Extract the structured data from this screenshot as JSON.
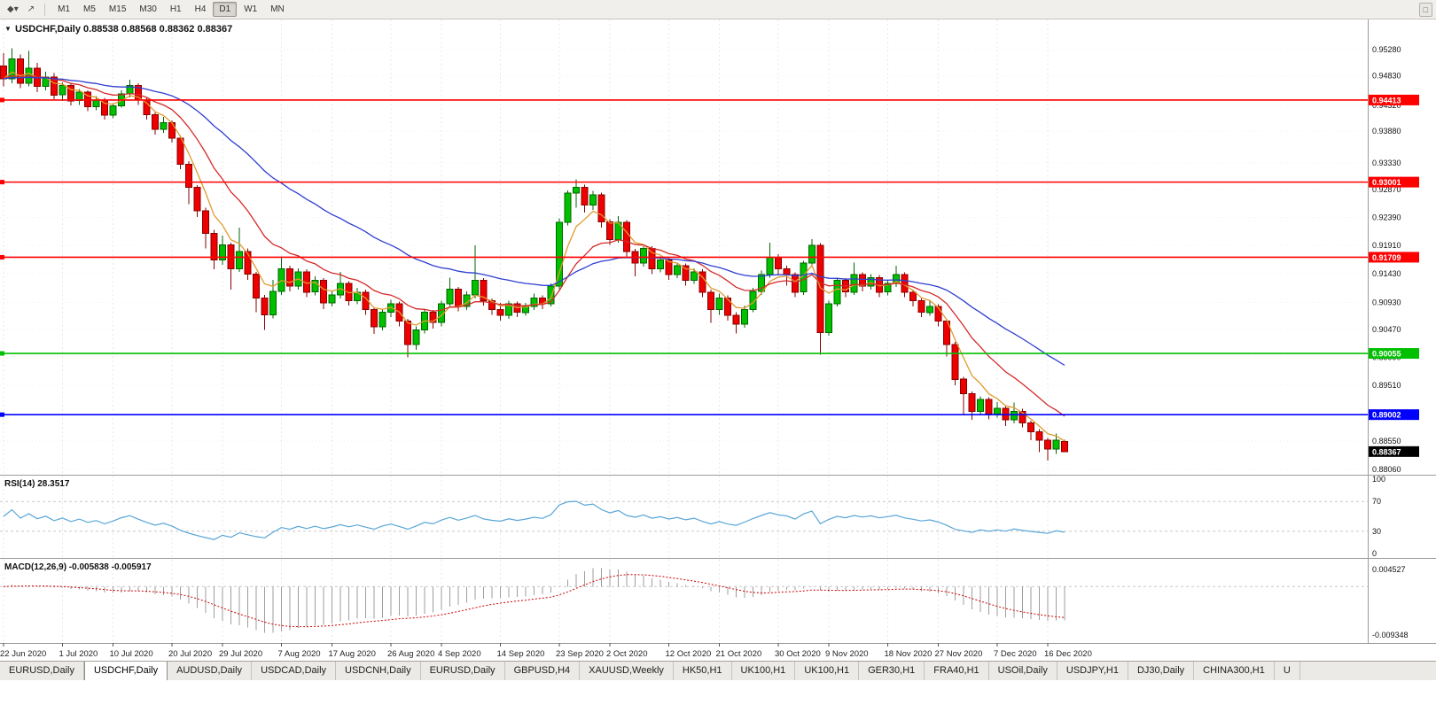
{
  "toolbar": {
    "icons": [
      {
        "name": "symbols-dropdown-icon",
        "glyph": "◆▾"
      },
      {
        "name": "cursor-arrow-icon",
        "glyph": "↗"
      },
      {
        "name": "window-restore-icon",
        "glyph": "□"
      }
    ],
    "timeframes": [
      "M1",
      "M5",
      "M15",
      "M30",
      "H1",
      "H4",
      "D1",
      "W1",
      "MN"
    ],
    "active_timeframe": "D1"
  },
  "chart": {
    "collapse_icon": "▼",
    "symbol_period": "USDCHF,Daily",
    "ohlc": "0.88538 0.88568 0.88362 0.88367"
  },
  "chart_data": {
    "type": "candlestick",
    "symbol": "USDCHF",
    "period": "Daily",
    "style": {
      "up_fill": "#00c000",
      "up_stroke": "#006600",
      "down_fill": "#ee0000",
      "down_stroke": "#880000",
      "hist": "#9e9e9e"
    },
    "price_axis_ticks": [
      "0.95280",
      "0.94830",
      "0.94320",
      "0.93880",
      "0.93330",
      "0.92870",
      "0.92390",
      "0.91910",
      "0.91430",
      "0.90930",
      "0.90470",
      "0.89990",
      "0.89510",
      "0.88550",
      "0.88060"
    ],
    "hlines": [
      {
        "value": 0.94413,
        "label": "0.94413",
        "color": "#ff0000"
      },
      {
        "value": 0.93001,
        "label": "0.93001",
        "color": "#ff0000"
      },
      {
        "value": 0.91709,
        "label": "0.91709",
        "color": "#ff0000"
      },
      {
        "value": 0.90055,
        "label": "0.90055",
        "color": "#00c000"
      },
      {
        "value": 0.89002,
        "label": "0.89002",
        "color": "#0000ff"
      }
    ],
    "current_price": {
      "value": 0.88367,
      "label": "0.88367",
      "color": "#000000"
    },
    "moving_averages": [
      {
        "period": 5,
        "method": "ema",
        "color": "#e09a2e"
      },
      {
        "period": 13,
        "method": "ema",
        "color": "#d42a2a"
      },
      {
        "period": 34,
        "method": "ema",
        "color": "#2e3fd0"
      }
    ],
    "x_labels": [
      "22 Jun 2020",
      "1 Jul 2020",
      "10 Jul 2020",
      "20 Jul 2020",
      "29 Jul 2020",
      "7 Aug 2020",
      "17 Aug 2020",
      "26 Aug 2020",
      "4 Sep 2020",
      "14 Sep 2020",
      "23 Sep 2020",
      "2 Oct 2020",
      "12 Oct 2020",
      "21 Oct 2020",
      "30 Oct 2020",
      "9 Nov 2020",
      "18 Nov 2020",
      "27 Nov 2020",
      "7 Dec 2020",
      "16 Dec 2020"
    ],
    "x_label_indices": [
      0,
      7,
      13,
      20,
      26,
      33,
      39,
      46,
      52,
      59,
      66,
      72,
      79,
      85,
      92,
      98,
      105,
      111,
      118,
      124
    ],
    "candles": [
      [
        0.95,
        0.9522,
        0.9465,
        0.9478
      ],
      [
        0.9478,
        0.953,
        0.947,
        0.9512
      ],
      [
        0.9512,
        0.952,
        0.9462,
        0.947
      ],
      [
        0.947,
        0.9526,
        0.9465,
        0.9496
      ],
      [
        0.9496,
        0.9505,
        0.9455,
        0.9465
      ],
      [
        0.9465,
        0.949,
        0.9458,
        0.9481
      ],
      [
        0.9481,
        0.9488,
        0.9443,
        0.945
      ],
      [
        0.945,
        0.9472,
        0.944,
        0.9466
      ],
      [
        0.9466,
        0.947,
        0.9432,
        0.944
      ],
      [
        0.944,
        0.946,
        0.9433,
        0.9455
      ],
      [
        0.9455,
        0.9458,
        0.9422,
        0.943
      ],
      [
        0.943,
        0.9448,
        0.9424,
        0.9441
      ],
      [
        0.9441,
        0.9445,
        0.9408,
        0.9415
      ],
      [
        0.9415,
        0.9436,
        0.941,
        0.9431
      ],
      [
        0.9431,
        0.9458,
        0.9428,
        0.9452
      ],
      [
        0.9452,
        0.9476,
        0.9446,
        0.9466
      ],
      [
        0.9466,
        0.947,
        0.9433,
        0.9441
      ],
      [
        0.9441,
        0.9445,
        0.9408,
        0.9416
      ],
      [
        0.9416,
        0.942,
        0.9382,
        0.9391
      ],
      [
        0.9391,
        0.9412,
        0.9385,
        0.9402
      ],
      [
        0.9402,
        0.9406,
        0.9368,
        0.9376
      ],
      [
        0.9376,
        0.938,
        0.9322,
        0.9331
      ],
      [
        0.9331,
        0.9336,
        0.9262,
        0.9291
      ],
      [
        0.9291,
        0.9295,
        0.924,
        0.9251
      ],
      [
        0.9251,
        0.9256,
        0.9186,
        0.9212
      ],
      [
        0.9212,
        0.9218,
        0.915,
        0.9166
      ],
      [
        0.9166,
        0.9208,
        0.9158,
        0.9192
      ],
      [
        0.9192,
        0.9196,
        0.9115,
        0.9151
      ],
      [
        0.9151,
        0.9222,
        0.9146,
        0.9181
      ],
      [
        0.9181,
        0.9186,
        0.9132,
        0.9142
      ],
      [
        0.9142,
        0.9146,
        0.9076,
        0.9101
      ],
      [
        0.9101,
        0.9106,
        0.9046,
        0.9072
      ],
      [
        0.9072,
        0.9132,
        0.9066,
        0.9112
      ],
      [
        0.9112,
        0.9172,
        0.9106,
        0.9151
      ],
      [
        0.9151,
        0.9156,
        0.9112,
        0.9121
      ],
      [
        0.9121,
        0.9152,
        0.9115,
        0.9146
      ],
      [
        0.9146,
        0.915,
        0.9102,
        0.9111
      ],
      [
        0.9111,
        0.9138,
        0.9105,
        0.9131
      ],
      [
        0.9131,
        0.9135,
        0.9082,
        0.9092
      ],
      [
        0.9092,
        0.9112,
        0.9086,
        0.9106
      ],
      [
        0.9106,
        0.9146,
        0.91,
        0.9126
      ],
      [
        0.9126,
        0.913,
        0.9088,
        0.9096
      ],
      [
        0.9096,
        0.9118,
        0.909,
        0.9111
      ],
      [
        0.9111,
        0.9115,
        0.9072,
        0.9081
      ],
      [
        0.9081,
        0.9085,
        0.9039,
        0.9051
      ],
      [
        0.9051,
        0.9082,
        0.9045,
        0.9076
      ],
      [
        0.9076,
        0.9098,
        0.9068,
        0.9091
      ],
      [
        0.9091,
        0.9095,
        0.9052,
        0.9061
      ],
      [
        0.9061,
        0.9065,
        0.8999,
        0.9021
      ],
      [
        0.9021,
        0.9052,
        0.9012,
        0.9046
      ],
      [
        0.9046,
        0.9082,
        0.904,
        0.9076
      ],
      [
        0.9076,
        0.908,
        0.9048,
        0.9059
      ],
      [
        0.9059,
        0.9096,
        0.9052,
        0.9091
      ],
      [
        0.9091,
        0.9136,
        0.9086,
        0.9116
      ],
      [
        0.9116,
        0.912,
        0.9078,
        0.9086
      ],
      [
        0.9086,
        0.9112,
        0.908,
        0.9106
      ],
      [
        0.9106,
        0.9191,
        0.91,
        0.9131
      ],
      [
        0.9131,
        0.9135,
        0.9088,
        0.9096
      ],
      [
        0.9096,
        0.91,
        0.9072,
        0.9081
      ],
      [
        0.9081,
        0.9092,
        0.9062,
        0.9071
      ],
      [
        0.9071,
        0.9096,
        0.9065,
        0.9091
      ],
      [
        0.9091,
        0.9095,
        0.9068,
        0.9076
      ],
      [
        0.9076,
        0.9092,
        0.907,
        0.9086
      ],
      [
        0.9086,
        0.9108,
        0.908,
        0.9101
      ],
      [
        0.9101,
        0.9105,
        0.9082,
        0.9091
      ],
      [
        0.9091,
        0.9126,
        0.9086,
        0.9121
      ],
      [
        0.9121,
        0.9238,
        0.9116,
        0.9231
      ],
      [
        0.9231,
        0.9286,
        0.9226,
        0.9281
      ],
      [
        0.9281,
        0.9305,
        0.9256,
        0.9291
      ],
      [
        0.9291,
        0.9296,
        0.9248,
        0.9261
      ],
      [
        0.9261,
        0.9285,
        0.9252,
        0.9278
      ],
      [
        0.9278,
        0.9282,
        0.9222,
        0.9232
      ],
      [
        0.9232,
        0.9236,
        0.9192,
        0.9201
      ],
      [
        0.9201,
        0.9242,
        0.9196,
        0.9231
      ],
      [
        0.9231,
        0.9235,
        0.9172,
        0.9181
      ],
      [
        0.9181,
        0.9185,
        0.9138,
        0.9161
      ],
      [
        0.9161,
        0.919,
        0.9155,
        0.9186
      ],
      [
        0.9186,
        0.919,
        0.9142,
        0.9151
      ],
      [
        0.9151,
        0.9172,
        0.9145,
        0.9166
      ],
      [
        0.9166,
        0.917,
        0.9132,
        0.9141
      ],
      [
        0.9141,
        0.9162,
        0.9135,
        0.9156
      ],
      [
        0.9156,
        0.916,
        0.9122,
        0.9131
      ],
      [
        0.9131,
        0.9152,
        0.9125,
        0.9146
      ],
      [
        0.9146,
        0.915,
        0.9102,
        0.9111
      ],
      [
        0.9111,
        0.9115,
        0.9058,
        0.9081
      ],
      [
        0.9081,
        0.9108,
        0.9072,
        0.9101
      ],
      [
        0.9101,
        0.9105,
        0.9062,
        0.9071
      ],
      [
        0.9071,
        0.9076,
        0.904,
        0.9056
      ],
      [
        0.9056,
        0.9088,
        0.905,
        0.9081
      ],
      [
        0.9081,
        0.9118,
        0.9076,
        0.9112
      ],
      [
        0.9112,
        0.9148,
        0.9106,
        0.9141
      ],
      [
        0.9141,
        0.9196,
        0.9136,
        0.9171
      ],
      [
        0.9171,
        0.9176,
        0.9142,
        0.9151
      ],
      [
        0.9151,
        0.9156,
        0.9122,
        0.9141
      ],
      [
        0.9141,
        0.9145,
        0.9102,
        0.9111
      ],
      [
        0.9111,
        0.9165,
        0.9106,
        0.9161
      ],
      [
        0.9161,
        0.9202,
        0.9156,
        0.9191
      ],
      [
        0.9191,
        0.9195,
        0.9003,
        0.9041
      ],
      [
        0.9041,
        0.9096,
        0.9036,
        0.9091
      ],
      [
        0.9091,
        0.9136,
        0.9086,
        0.9131
      ],
      [
        0.9131,
        0.9135,
        0.9102,
        0.9111
      ],
      [
        0.9111,
        0.9162,
        0.9106,
        0.9141
      ],
      [
        0.9141,
        0.9145,
        0.9112,
        0.9121
      ],
      [
        0.9121,
        0.9142,
        0.9115,
        0.9136
      ],
      [
        0.9136,
        0.914,
        0.9102,
        0.9111
      ],
      [
        0.9111,
        0.9132,
        0.9105,
        0.9126
      ],
      [
        0.9126,
        0.9156,
        0.912,
        0.9141
      ],
      [
        0.9141,
        0.9145,
        0.9102,
        0.9111
      ],
      [
        0.9111,
        0.9115,
        0.9086,
        0.9096
      ],
      [
        0.9096,
        0.91,
        0.9068,
        0.9076
      ],
      [
        0.9076,
        0.9098,
        0.907,
        0.9086
      ],
      [
        0.9086,
        0.909,
        0.9052,
        0.9061
      ],
      [
        0.9061,
        0.9065,
        0.9,
        0.9021
      ],
      [
        0.9021,
        0.9025,
        0.8951,
        0.8961
      ],
      [
        0.8961,
        0.8965,
        0.8901,
        0.8936
      ],
      [
        0.8936,
        0.894,
        0.8891,
        0.8906
      ],
      [
        0.8906,
        0.8932,
        0.89,
        0.8926
      ],
      [
        0.8926,
        0.893,
        0.8892,
        0.8901
      ],
      [
        0.8901,
        0.8922,
        0.8895,
        0.8911
      ],
      [
        0.8911,
        0.8915,
        0.8881,
        0.8891
      ],
      [
        0.8891,
        0.8921,
        0.8885,
        0.8906
      ],
      [
        0.8906,
        0.891,
        0.8878,
        0.8886
      ],
      [
        0.8886,
        0.889,
        0.8856,
        0.8871
      ],
      [
        0.8871,
        0.8875,
        0.8836,
        0.8856
      ],
      [
        0.8856,
        0.886,
        0.8821,
        0.8841
      ],
      [
        0.8841,
        0.8868,
        0.8833,
        0.8856
      ],
      [
        0.88538,
        0.88568,
        0.88362,
        0.88367
      ]
    ],
    "rsi": {
      "label": "RSI(14) 28.3517",
      "period": 14,
      "levels": [
        70,
        30
      ],
      "scale": [
        0,
        100
      ],
      "axis_ticks": [
        "100",
        "70",
        "30",
        "0"
      ],
      "color": "#58a6d8"
    },
    "macd": {
      "label": "MACD(12,26,9) -0.005838 -0.005917",
      "fast": 12,
      "slow": 26,
      "signal": 9,
      "main_value": "-0.005838",
      "signal_value": "-0.005917",
      "axis_max": "0.004527",
      "axis_min": "-0.009348",
      "signal_color": "#cc0000"
    }
  },
  "tabbar": {
    "active_index": 1,
    "tabs": [
      "EURUSD,Daily",
      "USDCHF,Daily",
      "AUDUSD,Daily",
      "USDCAD,Daily",
      "USDCNH,Daily",
      "EURUSD,Daily",
      "GBPUSD,H4",
      "XAUUSD,Weekly",
      "HK50,H1",
      "UK100,H1",
      "UK100,H1",
      "GER30,H1",
      "FRA40,H1",
      "USOil,Daily",
      "USDJPY,H1",
      "DJ30,Daily",
      "CHINA300,H1",
      "U"
    ]
  }
}
